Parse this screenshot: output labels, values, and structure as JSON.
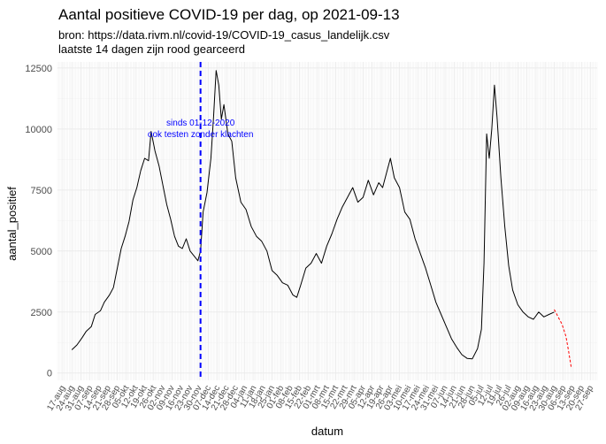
{
  "chart_data": {
    "type": "line",
    "title": "Aantal positieve COVID-19 per dag, op 2021-09-13",
    "subtitle_lines": [
      "bron: https://data.rivm.nl/covid-19/COVID-19_casus_landelijk.csv",
      "laatste 14 dagen zijn rood gearceerd"
    ],
    "xlabel": "datum",
    "ylabel": "aantal_positief",
    "xlim": [
      "2020-08-13",
      "2021-10-02"
    ],
    "ylim": [
      -300,
      12750
    ],
    "yticks": [
      0,
      2500,
      5000,
      7500,
      10000,
      12500
    ],
    "ytick_labels": [
      "0",
      "2500",
      "5000",
      "7500",
      "10000",
      "12500"
    ],
    "xtick_labels": [
      "17-aug",
      "24-aug",
      "31-aug",
      "07-sep",
      "14-sep",
      "21-sep",
      "28-sep",
      "05-okt",
      "12-okt",
      "19-okt",
      "26-okt",
      "02-nov",
      "09-nov",
      "16-nov",
      "23-nov",
      "30-nov",
      "07-dec",
      "14-dec",
      "21-dec",
      "28-dec",
      "04-jan",
      "11-jan",
      "18-jan",
      "25-jan",
      "01-feb",
      "08-feb",
      "15-feb",
      "22-feb",
      "01-mrt",
      "08-mrt",
      "15-mrt",
      "22-mrt",
      "29-mrt",
      "05-apr",
      "12-apr",
      "19-apr",
      "26-apr",
      "03-mei",
      "10-mei",
      "17-mei",
      "24-mei",
      "31-mei",
      "07-jun",
      "14-jun",
      "21-jun",
      "28-jun",
      "05-jul",
      "12-jul",
      "19-jul",
      "26-jul",
      "02-aug",
      "09-aug",
      "16-aug",
      "23-aug",
      "30-aug",
      "06-sep",
      "13-sep",
      "20-sep",
      "27-sep"
    ],
    "grid": true,
    "vline": {
      "x": "2020-12-01",
      "color": "#0000ff",
      "dash": true
    },
    "annotation": {
      "lines": [
        "sinds 01-12-2020",
        "ook testen zonder klachten"
      ],
      "x": "2020-12-01",
      "y": 10000
    },
    "series": [
      {
        "color": "#000000",
        "points": [
          [
            "2020-08-24",
            950
          ],
          [
            "2020-08-28",
            1150
          ],
          [
            "2020-09-01",
            1450
          ],
          [
            "2020-09-04",
            1700
          ],
          [
            "2020-09-08",
            1900
          ],
          [
            "2020-09-11",
            2400
          ],
          [
            "2020-09-15",
            2550
          ],
          [
            "2020-09-18",
            2900
          ],
          [
            "2020-09-22",
            3200
          ],
          [
            "2020-09-25",
            3500
          ],
          [
            "2020-09-28",
            4300
          ],
          [
            "2020-10-01",
            5100
          ],
          [
            "2020-10-04",
            5600
          ],
          [
            "2020-10-07",
            6200
          ],
          [
            "2020-10-10",
            7100
          ],
          [
            "2020-10-13",
            7600
          ],
          [
            "2020-10-16",
            8300
          ],
          [
            "2020-10-19",
            8800
          ],
          [
            "2020-10-22",
            8700
          ],
          [
            "2020-10-24",
            9900
          ],
          [
            "2020-10-27",
            9100
          ],
          [
            "2020-10-30",
            8500
          ],
          [
            "2020-11-02",
            7700
          ],
          [
            "2020-11-05",
            6900
          ],
          [
            "2020-11-08",
            6300
          ],
          [
            "2020-11-11",
            5600
          ],
          [
            "2020-11-14",
            5200
          ],
          [
            "2020-11-17",
            5100
          ],
          [
            "2020-11-20",
            5500
          ],
          [
            "2020-11-23",
            5000
          ],
          [
            "2020-11-26",
            4800
          ],
          [
            "2020-11-29",
            4600
          ],
          [
            "2020-12-01",
            5000
          ],
          [
            "2020-12-03",
            6600
          ],
          [
            "2020-12-06",
            7400
          ],
          [
            "2020-12-09",
            8800
          ],
          [
            "2020-12-11",
            10500
          ],
          [
            "2020-12-13",
            12400
          ],
          [
            "2020-12-15",
            11800
          ],
          [
            "2020-12-17",
            10400
          ],
          [
            "2020-12-19",
            11000
          ],
          [
            "2020-12-22",
            9800
          ],
          [
            "2020-12-25",
            9500
          ],
          [
            "2020-12-28",
            8000
          ],
          [
            "2021-01-01",
            7000
          ],
          [
            "2021-01-05",
            6700
          ],
          [
            "2021-01-09",
            6000
          ],
          [
            "2021-01-13",
            5600
          ],
          [
            "2021-01-17",
            5400
          ],
          [
            "2021-01-21",
            5000
          ],
          [
            "2021-01-25",
            4200
          ],
          [
            "2021-01-29",
            4000
          ],
          [
            "2021-02-02",
            3700
          ],
          [
            "2021-02-06",
            3600
          ],
          [
            "2021-02-10",
            3200
          ],
          [
            "2021-02-13",
            3100
          ],
          [
            "2021-02-16",
            3600
          ],
          [
            "2021-02-20",
            4300
          ],
          [
            "2021-02-24",
            4500
          ],
          [
            "2021-02-28",
            4900
          ],
          [
            "2021-03-04",
            4500
          ],
          [
            "2021-03-08",
            5200
          ],
          [
            "2021-03-12",
            5700
          ],
          [
            "2021-03-16",
            6300
          ],
          [
            "2021-03-20",
            6800
          ],
          [
            "2021-03-24",
            7200
          ],
          [
            "2021-03-28",
            7600
          ],
          [
            "2021-04-01",
            7000
          ],
          [
            "2021-04-05",
            7200
          ],
          [
            "2021-04-09",
            7900
          ],
          [
            "2021-04-13",
            7300
          ],
          [
            "2021-04-17",
            7800
          ],
          [
            "2021-04-20",
            7600
          ],
          [
            "2021-04-23",
            8200
          ],
          [
            "2021-04-26",
            8800
          ],
          [
            "2021-04-29",
            8000
          ],
          [
            "2021-05-03",
            7600
          ],
          [
            "2021-05-07",
            6600
          ],
          [
            "2021-05-11",
            6300
          ],
          [
            "2021-05-15",
            5500
          ],
          [
            "2021-05-19",
            4900
          ],
          [
            "2021-05-23",
            4300
          ],
          [
            "2021-05-27",
            3600
          ],
          [
            "2021-05-31",
            2900
          ],
          [
            "2021-06-04",
            2400
          ],
          [
            "2021-06-08",
            1900
          ],
          [
            "2021-06-12",
            1400
          ],
          [
            "2021-06-16",
            1050
          ],
          [
            "2021-06-20",
            750
          ],
          [
            "2021-06-24",
            600
          ],
          [
            "2021-06-28",
            580
          ],
          [
            "2021-07-02",
            1000
          ],
          [
            "2021-07-05",
            1800
          ],
          [
            "2021-07-07",
            4500
          ],
          [
            "2021-07-09",
            9800
          ],
          [
            "2021-07-11",
            8800
          ],
          [
            "2021-07-13",
            10000
          ],
          [
            "2021-07-15",
            11800
          ],
          [
            "2021-07-17",
            10500
          ],
          [
            "2021-07-20",
            8000
          ],
          [
            "2021-07-23",
            6000
          ],
          [
            "2021-07-26",
            4400
          ],
          [
            "2021-07-29",
            3400
          ],
          [
            "2021-08-02",
            2800
          ],
          [
            "2021-08-06",
            2500
          ],
          [
            "2021-08-10",
            2300
          ],
          [
            "2021-08-14",
            2200
          ],
          [
            "2021-08-18",
            2500
          ],
          [
            "2021-08-22",
            2300
          ],
          [
            "2021-08-26",
            2400
          ],
          [
            "2021-08-30",
            2500
          ]
        ]
      },
      {
        "color": "#ff0000",
        "dash": true,
        "points": [
          [
            "2021-08-30",
            2600
          ],
          [
            "2021-09-02",
            2300
          ],
          [
            "2021-09-05",
            2000
          ],
          [
            "2021-09-08",
            1500
          ],
          [
            "2021-09-10",
            900
          ],
          [
            "2021-09-12",
            250
          ]
        ]
      }
    ]
  }
}
